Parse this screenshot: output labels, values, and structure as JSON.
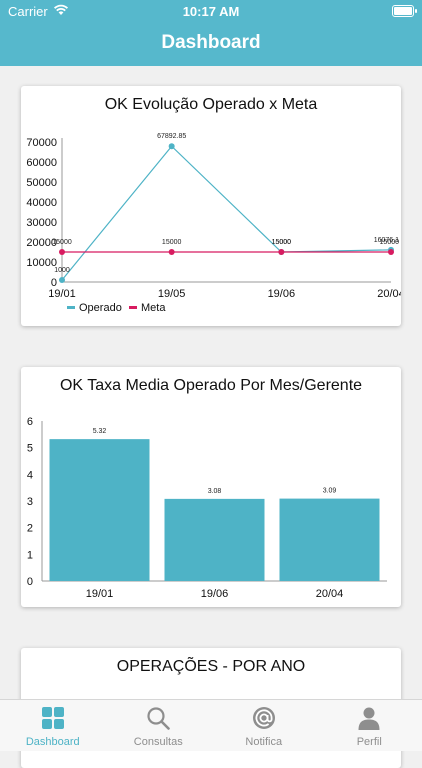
{
  "status_bar": {
    "carrier": "Carrier",
    "time": "10:17 AM"
  },
  "nav": {
    "title": "Dashboard"
  },
  "colors": {
    "header": "#56b8cc",
    "operado": "#4eb3c6",
    "meta": "#d81b60",
    "bar": "#4eb3c6"
  },
  "cards": [
    {
      "title": "OK Evolução Operado x Meta"
    },
    {
      "title": "OK Taxa Media Operado Por Mes/Gerente"
    },
    {
      "title": "OPERAÇÕES - POR ANO"
    }
  ],
  "chart_data": [
    {
      "type": "line",
      "title": "OK Evolução Operado x Meta",
      "categories": [
        "19/01",
        "19/05",
        "19/06",
        "20/04"
      ],
      "series": [
        {
          "name": "Operado",
          "values": [
            1000,
            67892.85,
            15000,
            16076.1
          ],
          "labels": [
            "1000",
            "67892.85",
            "15000",
            "16076.1"
          ]
        },
        {
          "name": "Meta",
          "values": [
            15000,
            15000,
            15000,
            15000
          ],
          "labels": [
            "15000",
            "15000",
            "15000",
            "15000"
          ]
        }
      ],
      "yticks": [
        0,
        10000,
        20000,
        30000,
        40000,
        50000,
        60000,
        70000
      ],
      "ylim": [
        0,
        72000
      ],
      "legend": "bottom-left"
    },
    {
      "type": "bar",
      "title": "OK Taxa Media Operado Por Mes/Gerente",
      "categories": [
        "19/01",
        "19/06",
        "20/04"
      ],
      "values": [
        5.32,
        3.08,
        3.09
      ],
      "labels": [
        "5.32",
        "3.08",
        "3.09"
      ],
      "yticks": [
        0,
        1,
        2,
        3,
        4,
        5,
        6
      ],
      "ylim": [
        0,
        6
      ]
    }
  ],
  "tabs": [
    {
      "label": "Dashboard",
      "icon": "grid-icon",
      "active": true
    },
    {
      "label": "Consultas",
      "icon": "search-icon",
      "active": false
    },
    {
      "label": "Notifica",
      "icon": "at-sign-icon",
      "active": false
    },
    {
      "label": "Perfil",
      "icon": "person-icon",
      "active": false
    }
  ]
}
